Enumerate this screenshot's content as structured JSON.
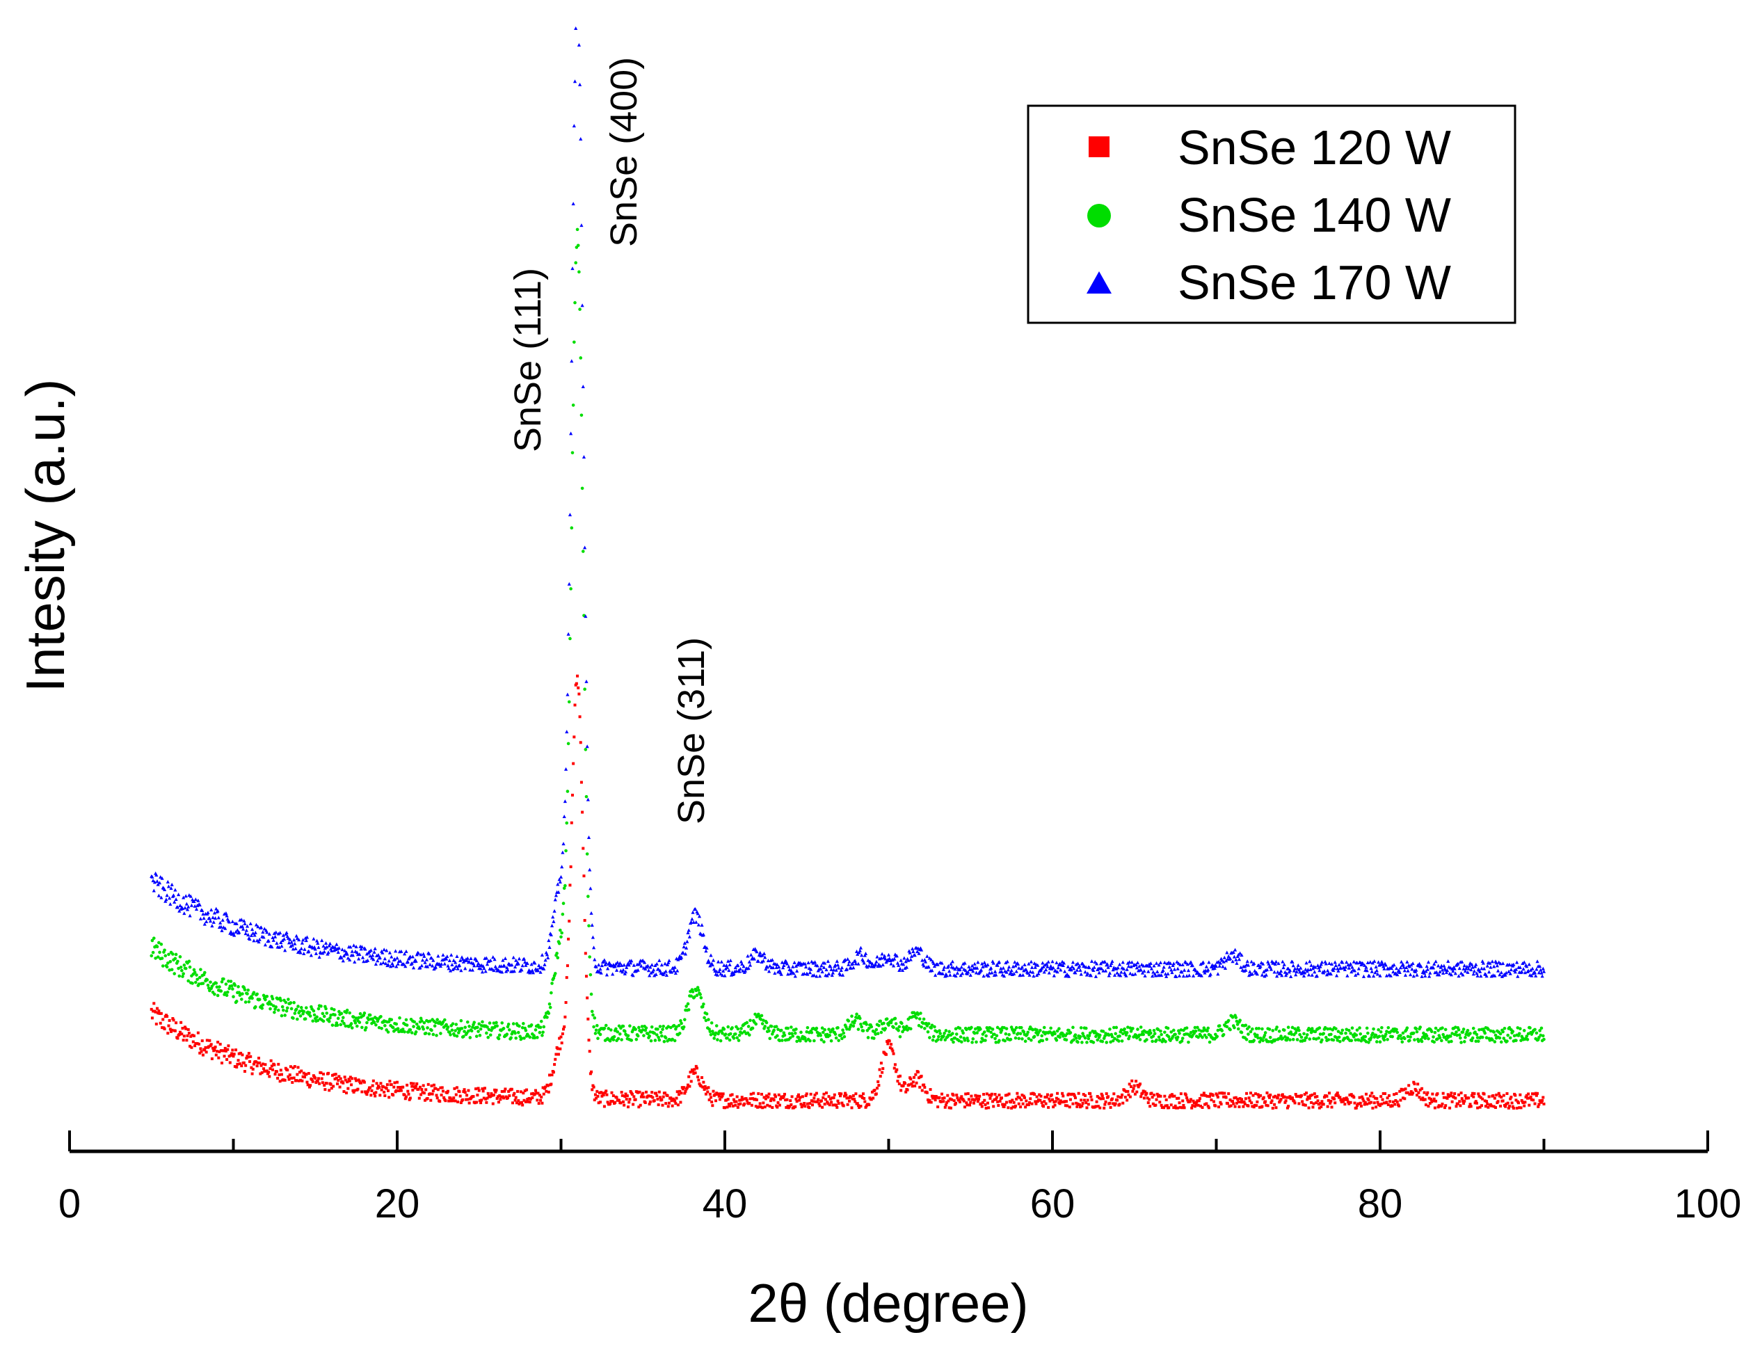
{
  "chart_data": {
    "type": "scatter",
    "title": "",
    "xlabel": "2θ (degree)",
    "ylabel": "Intesity (a.u.)",
    "xlim": [
      0,
      100
    ],
    "x_ticks": [
      0,
      20,
      40,
      60,
      80,
      100
    ],
    "x_tick_labels": [
      "0",
      "20",
      "40",
      "60",
      "80",
      "100"
    ],
    "y_ticks_visible": false,
    "grid": false,
    "legend_position": "top-right",
    "x_range_of_data": [
      5,
      90
    ],
    "series": [
      {
        "name": "SnSe 120 W",
        "color": "#ff0000",
        "marker": "square",
        "baseline": 0.0,
        "low_angle_rise": 0.2,
        "peaks": [
          {
            "x": 30.0,
            "height": 0.12
          },
          {
            "x": 31.0,
            "height": 0.95
          },
          {
            "x": 38.2,
            "height": 0.06
          },
          {
            "x": 50.0,
            "height": 0.12
          },
          {
            "x": 51.7,
            "height": 0.05
          },
          {
            "x": 65.0,
            "height": 0.03
          },
          {
            "x": 82.0,
            "height": 0.03
          }
        ]
      },
      {
        "name": "SnSe 140 W",
        "color": "#00dd00",
        "marker": "circle",
        "baseline": 0.15,
        "low_angle_rise": 0.2,
        "peaks": [
          {
            "x": 30.0,
            "height": 0.2
          },
          {
            "x": 31.0,
            "height": 1.8
          },
          {
            "x": 38.2,
            "height": 0.1
          },
          {
            "x": 42.0,
            "height": 0.03
          },
          {
            "x": 48.0,
            "height": 0.03
          },
          {
            "x": 50.0,
            "height": 0.03
          },
          {
            "x": 51.7,
            "height": 0.04
          },
          {
            "x": 71.0,
            "height": 0.03
          }
        ]
      },
      {
        "name": "SnSe 170 W",
        "color": "#0000ff",
        "marker": "triangle",
        "baseline": 0.3,
        "low_angle_rise": 0.2,
        "peaks": [
          {
            "x": 30.0,
            "height": 0.18
          },
          {
            "x": 31.0,
            "height": 2.2
          },
          {
            "x": 38.2,
            "height": 0.12
          },
          {
            "x": 42.0,
            "height": 0.03
          },
          {
            "x": 48.3,
            "height": 0.03
          },
          {
            "x": 50.0,
            "height": 0.03
          },
          {
            "x": 51.7,
            "height": 0.04
          },
          {
            "x": 71.0,
            "height": 0.03
          }
        ]
      }
    ],
    "annotations": [
      {
        "text": "SnSe (111)",
        "x": 29,
        "rotation": -90
      },
      {
        "text": "SnSe (400)",
        "x": 34,
        "rotation": -90
      },
      {
        "text": "SnSe (311)",
        "x": 38.2,
        "rotation": -90
      }
    ]
  }
}
